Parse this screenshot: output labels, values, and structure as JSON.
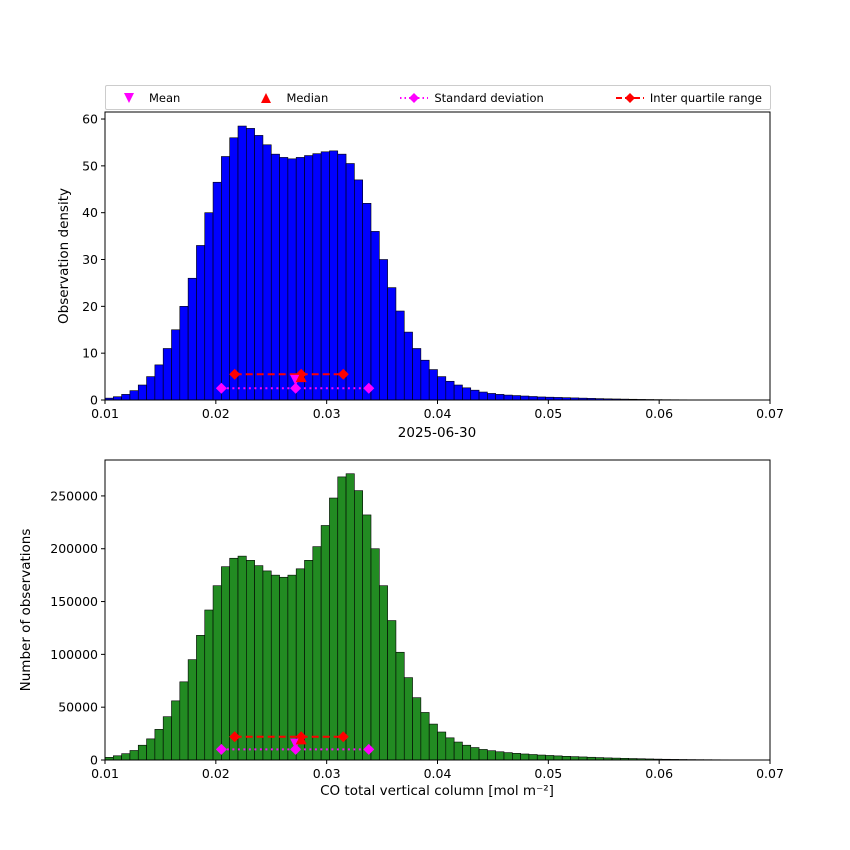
{
  "figure": {
    "title": "2025-06-30",
    "xlabel": "CO total vertical column [mol m⁻²]",
    "background": "#ffffff",
    "colors": {
      "mean": "#FF00FF",
      "median": "#FF0000",
      "std": "#FF00FF",
      "iqr": "#FF0000",
      "axis": "#000000"
    },
    "legend": [
      {
        "label": "Mean",
        "marker": "triangle-down",
        "color": "#FF00FF",
        "line": "none"
      },
      {
        "label": "Median",
        "marker": "triangle-up",
        "color": "#FF0000",
        "line": "none"
      },
      {
        "label": "Standard deviation",
        "marker": "diamond",
        "color": "#FF00FF",
        "line": "dotted"
      },
      {
        "label": "Inter quartile range",
        "marker": "diamond",
        "color": "#FF0000",
        "line": "dashed"
      }
    ]
  },
  "chart_data": [
    {
      "type": "bar",
      "id": "observation-density",
      "ylabel": "Observation density",
      "bin_start": 0.01,
      "bin_width": 0.00075,
      "xlim": [
        0.01,
        0.07
      ],
      "ylim": [
        0,
        61.5
      ],
      "xticks": [
        0.01,
        0.02,
        0.03,
        0.04,
        0.05,
        0.06,
        0.07
      ],
      "xtick_labels": [
        "0.01",
        "0.02",
        "0.03",
        "0.04",
        "0.05",
        "0.06",
        "0.07"
      ],
      "yticks": [
        0,
        10,
        20,
        30,
        40,
        50,
        60
      ],
      "ytick_labels": [
        "0",
        "10",
        "20",
        "30",
        "40",
        "50",
        "60"
      ],
      "bar_color": "#0000FF",
      "grid": false,
      "values": [
        0.4,
        0.7,
        1.2,
        2.0,
        3.2,
        5.0,
        7.5,
        11.0,
        15.0,
        20.0,
        26.0,
        33.0,
        40.0,
        46.5,
        52.0,
        56.0,
        58.5,
        58.0,
        56.5,
        54.5,
        52.5,
        51.8,
        51.5,
        51.8,
        52.2,
        52.6,
        53.0,
        53.2,
        52.5,
        50.5,
        47.0,
        42.0,
        36.0,
        30.0,
        24.0,
        19.0,
        14.5,
        11.0,
        8.5,
        6.5,
        5.0,
        4.0,
        3.2,
        2.6,
        2.1,
        1.7,
        1.4,
        1.2,
        1.05,
        0.95,
        0.85,
        0.75,
        0.65,
        0.6,
        0.55,
        0.5,
        0.45,
        0.4,
        0.35,
        0.3,
        0.25,
        0.22,
        0.19,
        0.16,
        0.13,
        0.11,
        0.09,
        0.07,
        0.06,
        0.05,
        0.04,
        0.03,
        0.03,
        0.02,
        0.02,
        0.01,
        0.01,
        0.01,
        0,
        0
      ],
      "stats": {
        "mean": 0.0272,
        "median": 0.0277,
        "std_range": [
          0.0205,
          0.0338
        ],
        "iqr_range": [
          0.0217,
          0.0315
        ],
        "std_y": 2.5,
        "iqr_y": 5.5,
        "mean_y": 4.2,
        "median_y": 5.0
      }
    },
    {
      "type": "bar",
      "id": "number-of-observations",
      "ylabel": "Number of observations",
      "bin_start": 0.01,
      "bin_width": 0.00075,
      "xlim": [
        0.01,
        0.07
      ],
      "ylim": [
        0,
        284000
      ],
      "xticks": [
        0.01,
        0.02,
        0.03,
        0.04,
        0.05,
        0.06,
        0.07
      ],
      "xtick_labels": [
        "0.01",
        "0.02",
        "0.03",
        "0.04",
        "0.05",
        "0.06",
        "0.07"
      ],
      "yticks": [
        0,
        50000,
        100000,
        150000,
        200000,
        250000
      ],
      "ytick_labels": [
        "0",
        "50000",
        "100000",
        "150000",
        "200000",
        "250000"
      ],
      "bar_color": "#228B22",
      "grid": false,
      "values": [
        2500,
        4000,
        6000,
        9000,
        14000,
        20000,
        29000,
        41000,
        56000,
        74000,
        95000,
        118000,
        142000,
        165000,
        183000,
        191000,
        193000,
        189000,
        184000,
        179000,
        175000,
        173000,
        175000,
        181000,
        189000,
        202000,
        222000,
        248000,
        268000,
        271000,
        255000,
        232000,
        200000,
        165000,
        132000,
        102000,
        78000,
        59000,
        45000,
        34000,
        26500,
        21000,
        17000,
        14000,
        11800,
        10000,
        8800,
        7800,
        7000,
        6300,
        5700,
        5200,
        4700,
        4300,
        3900,
        3500,
        3200,
        2900,
        2600,
        2300,
        2000,
        1800,
        1600,
        1400,
        1200,
        1000,
        850,
        700,
        600,
        500,
        420,
        350,
        300,
        250,
        200,
        160,
        130,
        100,
        80,
        60
      ],
      "stats": {
        "mean": 0.0272,
        "median": 0.0277,
        "std_range": [
          0.0205,
          0.0338
        ],
        "iqr_range": [
          0.0217,
          0.0315
        ],
        "std_y": 10000,
        "iqr_y": 22000,
        "mean_y": 15000,
        "median_y": 20000
      }
    }
  ]
}
